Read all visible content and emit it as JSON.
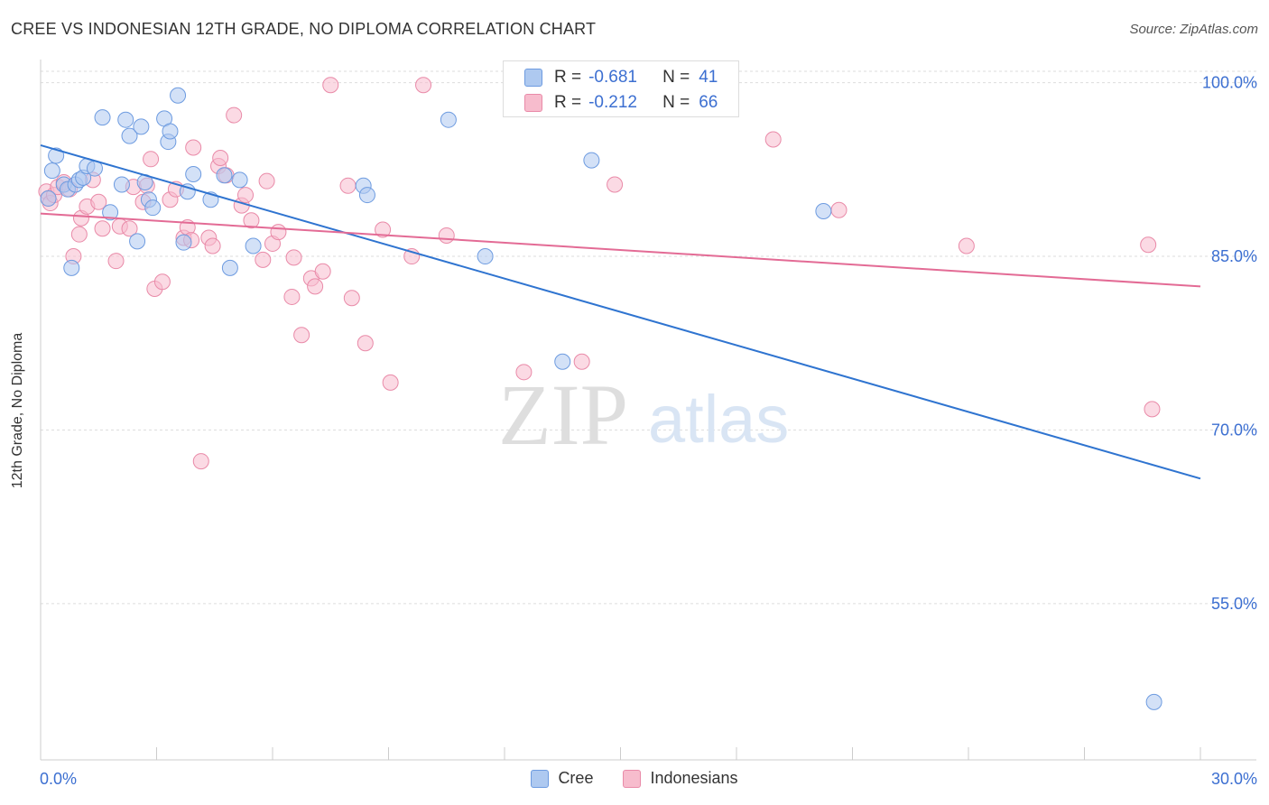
{
  "header": {
    "title": "CREE VS INDONESIAN 12TH GRADE, NO DIPLOMA CORRELATION CHART",
    "source": "Source: ZipAtlas.com"
  },
  "watermark": {
    "zip": "ZIP",
    "atlas": "atlas"
  },
  "stats": [
    {
      "r_label": "R =",
      "r_value": "-0.681",
      "n_label": "N =",
      "n_value": "41"
    },
    {
      "r_label": "R =",
      "r_value": "-0.212",
      "n_label": "N =",
      "n_value": "66"
    }
  ],
  "chart_data": {
    "type": "scatter",
    "title": "CREE VS INDONESIAN 12TH GRADE, NO DIPLOMA CORRELATION CHART",
    "xlabel": "",
    "ylabel": "12th Grade, No Diploma",
    "xlim": [
      0,
      30
    ],
    "ylim": [
      41.5,
      102
    ],
    "x_tick_labels": [
      "0.0%",
      "30.0%"
    ],
    "y_ticks": [
      55,
      70,
      85,
      100
    ],
    "y_tick_labels": [
      "55.0%",
      "70.0%",
      "85.0%",
      "100.0%"
    ],
    "grid": true,
    "legend_position": "bottom-center",
    "colors": {
      "cree_fill": "#aec9f0",
      "cree_stroke": "#6d9be0",
      "cree_line": "#2f74d0",
      "indo_fill": "#f7bccd",
      "indo_stroke": "#e98aa8",
      "indo_line": "#e36b95",
      "tick_label": "#3c6fd1",
      "grid": "#dddddd"
    },
    "series": [
      {
        "name": "Cree",
        "points": [
          [
            0.2,
            90.0
          ],
          [
            0.3,
            92.4
          ],
          [
            0.4,
            93.7
          ],
          [
            0.6,
            91.2
          ],
          [
            0.7,
            90.8
          ],
          [
            0.8,
            84.0
          ],
          [
            0.9,
            91.2
          ],
          [
            1.0,
            91.6
          ],
          [
            1.1,
            91.8
          ],
          [
            1.2,
            92.8
          ],
          [
            1.4,
            92.6
          ],
          [
            1.6,
            97.0
          ],
          [
            1.8,
            88.8
          ],
          [
            2.1,
            91.2
          ],
          [
            2.2,
            96.8
          ],
          [
            2.3,
            95.4
          ],
          [
            2.5,
            86.3
          ],
          [
            2.6,
            96.2
          ],
          [
            2.7,
            91.4
          ],
          [
            2.8,
            89.9
          ],
          [
            2.9,
            89.2
          ],
          [
            3.2,
            96.9
          ],
          [
            3.3,
            94.9
          ],
          [
            3.35,
            95.8
          ],
          [
            3.55,
            98.9
          ],
          [
            3.7,
            86.2
          ],
          [
            3.8,
            90.6
          ],
          [
            3.95,
            92.1
          ],
          [
            4.4,
            89.9
          ],
          [
            4.75,
            92.0
          ],
          [
            4.9,
            84.0
          ],
          [
            5.15,
            91.6
          ],
          [
            5.5,
            85.9
          ],
          [
            8.35,
            91.1
          ],
          [
            8.45,
            90.3
          ],
          [
            10.55,
            96.8
          ],
          [
            11.5,
            85.0
          ],
          [
            13.5,
            75.9
          ],
          [
            14.25,
            93.3
          ],
          [
            20.25,
            88.9
          ],
          [
            28.8,
            46.5
          ]
        ]
      },
      {
        "name": "Indonesians",
        "points": [
          [
            0.15,
            90.6
          ],
          [
            0.2,
            90.0
          ],
          [
            0.25,
            89.6
          ],
          [
            0.35,
            90.3
          ],
          [
            0.45,
            91.0
          ],
          [
            0.6,
            91.4
          ],
          [
            0.75,
            90.8
          ],
          [
            0.85,
            85.0
          ],
          [
            1.0,
            86.9
          ],
          [
            1.05,
            88.3
          ],
          [
            1.2,
            89.3
          ],
          [
            1.35,
            91.6
          ],
          [
            1.5,
            89.7
          ],
          [
            1.6,
            87.4
          ],
          [
            1.95,
            84.6
          ],
          [
            2.05,
            87.6
          ],
          [
            2.3,
            87.4
          ],
          [
            2.4,
            91.0
          ],
          [
            2.65,
            89.7
          ],
          [
            2.75,
            91.1
          ],
          [
            2.85,
            93.4
          ],
          [
            2.95,
            82.2
          ],
          [
            3.15,
            82.8
          ],
          [
            3.35,
            89.9
          ],
          [
            3.5,
            90.8
          ],
          [
            3.7,
            86.6
          ],
          [
            3.8,
            87.5
          ],
          [
            3.9,
            86.4
          ],
          [
            3.95,
            94.4
          ],
          [
            4.15,
            67.3
          ],
          [
            4.35,
            86.6
          ],
          [
            4.45,
            85.9
          ],
          [
            4.6,
            92.8
          ],
          [
            4.65,
            93.5
          ],
          [
            4.8,
            92.0
          ],
          [
            5.0,
            97.2
          ],
          [
            5.2,
            89.4
          ],
          [
            5.3,
            90.3
          ],
          [
            5.45,
            88.1
          ],
          [
            5.75,
            84.7
          ],
          [
            5.85,
            91.5
          ],
          [
            6.0,
            86.1
          ],
          [
            6.15,
            87.1
          ],
          [
            6.5,
            81.5
          ],
          [
            6.55,
            84.9
          ],
          [
            6.75,
            78.2
          ],
          [
            7.0,
            83.1
          ],
          [
            7.1,
            82.4
          ],
          [
            7.3,
            83.7
          ],
          [
            7.5,
            99.8
          ],
          [
            7.95,
            91.1
          ],
          [
            8.05,
            81.4
          ],
          [
            8.4,
            77.5
          ],
          [
            8.85,
            87.3
          ],
          [
            9.05,
            74.1
          ],
          [
            9.6,
            85.0
          ],
          [
            9.9,
            99.8
          ],
          [
            10.5,
            86.8
          ],
          [
            12.5,
            75.0
          ],
          [
            14.0,
            75.9
          ],
          [
            14.85,
            91.2
          ],
          [
            18.95,
            95.1
          ],
          [
            20.65,
            89.0
          ],
          [
            23.95,
            85.9
          ],
          [
            28.65,
            86.0
          ],
          [
            28.75,
            71.8
          ]
        ]
      }
    ],
    "trendlines": [
      {
        "name": "Cree",
        "x": [
          0,
          30
        ],
        "y": [
          94.6,
          65.8
        ]
      },
      {
        "name": "Indonesians",
        "x": [
          0,
          30
        ],
        "y": [
          88.7,
          82.4
        ]
      }
    ]
  },
  "legend": {
    "items": [
      "Cree",
      "Indonesians"
    ]
  }
}
